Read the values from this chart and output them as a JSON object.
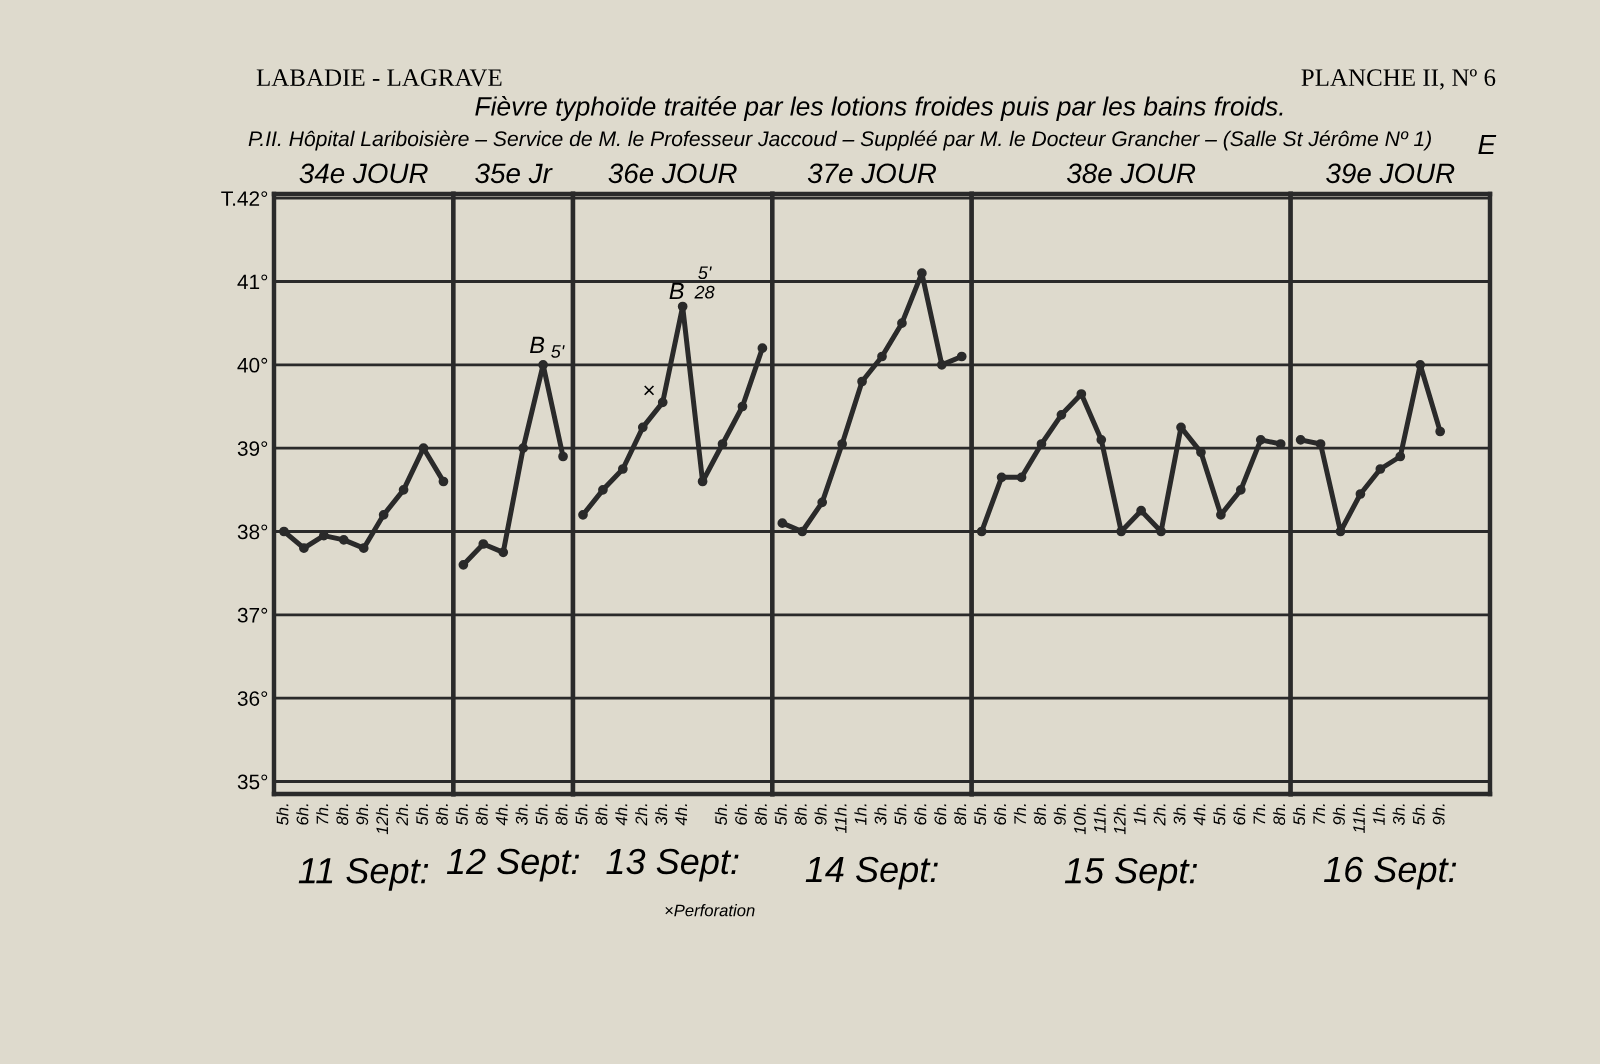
{
  "chart_data": [
    {
      "type": "line",
      "title": "34e JOUR",
      "xlabel": "11 Sept:",
      "categories": [
        "5h.",
        "6h.",
        "7h.",
        "8h.",
        "9h.",
        "12h.",
        "2h.",
        "5h.",
        "8h."
      ],
      "series": [
        {
          "color": "#2a2a2a",
          "values": [
            38.0,
            37.8,
            37.95,
            37.9,
            37.8,
            38.2,
            38.5,
            39.0,
            38.6
          ]
        }
      ],
      "marker": "circle",
      "line_style": "solid",
      "grid": "y",
      "ylim": [
        34.85,
        42.05
      ],
      "yticks": [
        {
          "value": 35,
          "label": "35°"
        },
        {
          "value": 36,
          "label": "36°"
        },
        {
          "value": 37,
          "label": "37°"
        },
        {
          "value": 38,
          "label": "38°"
        },
        {
          "value": 39,
          "label": "39°"
        },
        {
          "value": 40,
          "label": "40°"
        },
        {
          "value": 41,
          "label": "41°"
        },
        {
          "value": 42,
          "label": "T.42°"
        }
      ],
      "annotations": [
        "LABADIE - LAGRAVE",
        "PLANCHE II, Nº 6",
        "Fièvre typhoïde traitée par les lotions froides puis par les bains froids.",
        "P.II. Hôpital Lariboisière – Service de M. le Professeur Jaccoud – Suppléé par M. le Docteur Grancher – (Salle St Jérôme Nº 1)",
        "E"
      ]
    },
    {
      "type": "line",
      "title": "35e Jr",
      "xlabel": "12 Sept:",
      "categories": [
        "5h.",
        "8h.",
        "4h.",
        "3h.",
        "5h.",
        "8h."
      ],
      "series": [
        {
          "color": "#2a2a2a",
          "values": [
            37.6,
            37.85,
            37.75,
            39.0,
            40.0,
            38.9
          ]
        }
      ],
      "marker": "circle",
      "line_style": "solid",
      "grid": "y",
      "ylim": [
        34.85,
        42.05
      ],
      "yticks": [
        35,
        36,
        37,
        38,
        39,
        40,
        41,
        42
      ],
      "tick_labels": "x",
      "annotations": [
        "B",
        "5'"
      ]
    },
    {
      "type": "line",
      "title": "36e JOUR",
      "xlabel": "13 Sept:",
      "categories": [
        "5h.",
        "8h.",
        "4h.",
        "2h.",
        "3h.",
        "4h.",
        null,
        "5h.",
        "6h.",
        "8h."
      ],
      "series": [
        {
          "color": "#2a2a2a",
          "values": [
            38.2,
            38.5,
            38.75,
            39.25,
            39.55,
            40.7,
            38.6,
            39.05,
            39.5,
            40.2
          ]
        }
      ],
      "marker": "circle",
      "line_style": "solid",
      "grid": "y",
      "ylim": [
        34.85,
        42.05
      ],
      "yticks": [
        35,
        36,
        37,
        38,
        39,
        40,
        41,
        42
      ],
      "tick_labels": "x",
      "annotations": [
        "B",
        "5'\n28",
        "×",
        "×Perforation"
      ]
    },
    {
      "type": "line",
      "title": "37e JOUR",
      "xlabel": "14 Sept:",
      "categories": [
        "5h.",
        "8h.",
        "9h.",
        "11h.",
        "1h.",
        "3h.",
        "5h.",
        "6h.",
        "6h.",
        "8h."
      ],
      "series": [
        {
          "color": "#2a2a2a",
          "values": [
            38.1,
            38.0,
            38.35,
            39.05,
            39.8,
            40.1,
            40.5,
            41.1,
            40.0,
            40.1
          ]
        }
      ],
      "marker": "circle",
      "line_style": "solid",
      "grid": "y",
      "ylim": [
        34.85,
        42.05
      ],
      "yticks": [
        35,
        36,
        37,
        38,
        39,
        40,
        41,
        42
      ],
      "tick_labels": "x"
    },
    {
      "type": "line",
      "title": "38e JOUR",
      "xlabel": "15 Sept:",
      "categories": [
        "5h.",
        "6h.",
        "7h.",
        "8h.",
        "9h.",
        "10h.",
        "11h.",
        "12h.",
        "1h.",
        "2h.",
        "3h.",
        "4h.",
        "5h.",
        "6h.",
        "7h.",
        "8h."
      ],
      "series": [
        {
          "color": "#2a2a2a",
          "values": [
            38.0,
            38.65,
            38.65,
            39.05,
            39.4,
            39.65,
            39.1,
            38.0,
            38.25,
            38.0,
            39.25,
            38.95,
            38.2,
            38.5,
            39.1,
            39.05
          ]
        }
      ],
      "marker": "circle",
      "line_style": "solid",
      "grid": "y",
      "ylim": [
        34.85,
        42.05
      ],
      "yticks": [
        35,
        36,
        37,
        38,
        39,
        40,
        41,
        42
      ],
      "tick_labels": "x"
    },
    {
      "type": "line",
      "title": "39e JOUR",
      "xlabel": "16 Sept:",
      "categories": [
        "5h.",
        "7h.",
        "9h.",
        "11h.",
        "1h.",
        "3h.",
        "5h.",
        "9h.",
        null,
        null
      ],
      "series": [
        {
          "color": "#2a2a2a",
          "values": [
            39.1,
            39.05,
            38.0,
            38.45,
            38.75,
            38.9,
            40.0,
            39.2,
            null,
            null
          ]
        }
      ],
      "marker": "circle",
      "line_style": "solid",
      "grid": "y",
      "ylim": [
        34.85,
        42.05
      ],
      "yticks": [
        35,
        36,
        37,
        38,
        39,
        40,
        41,
        42
      ],
      "tick_labels": "x"
    }
  ]
}
